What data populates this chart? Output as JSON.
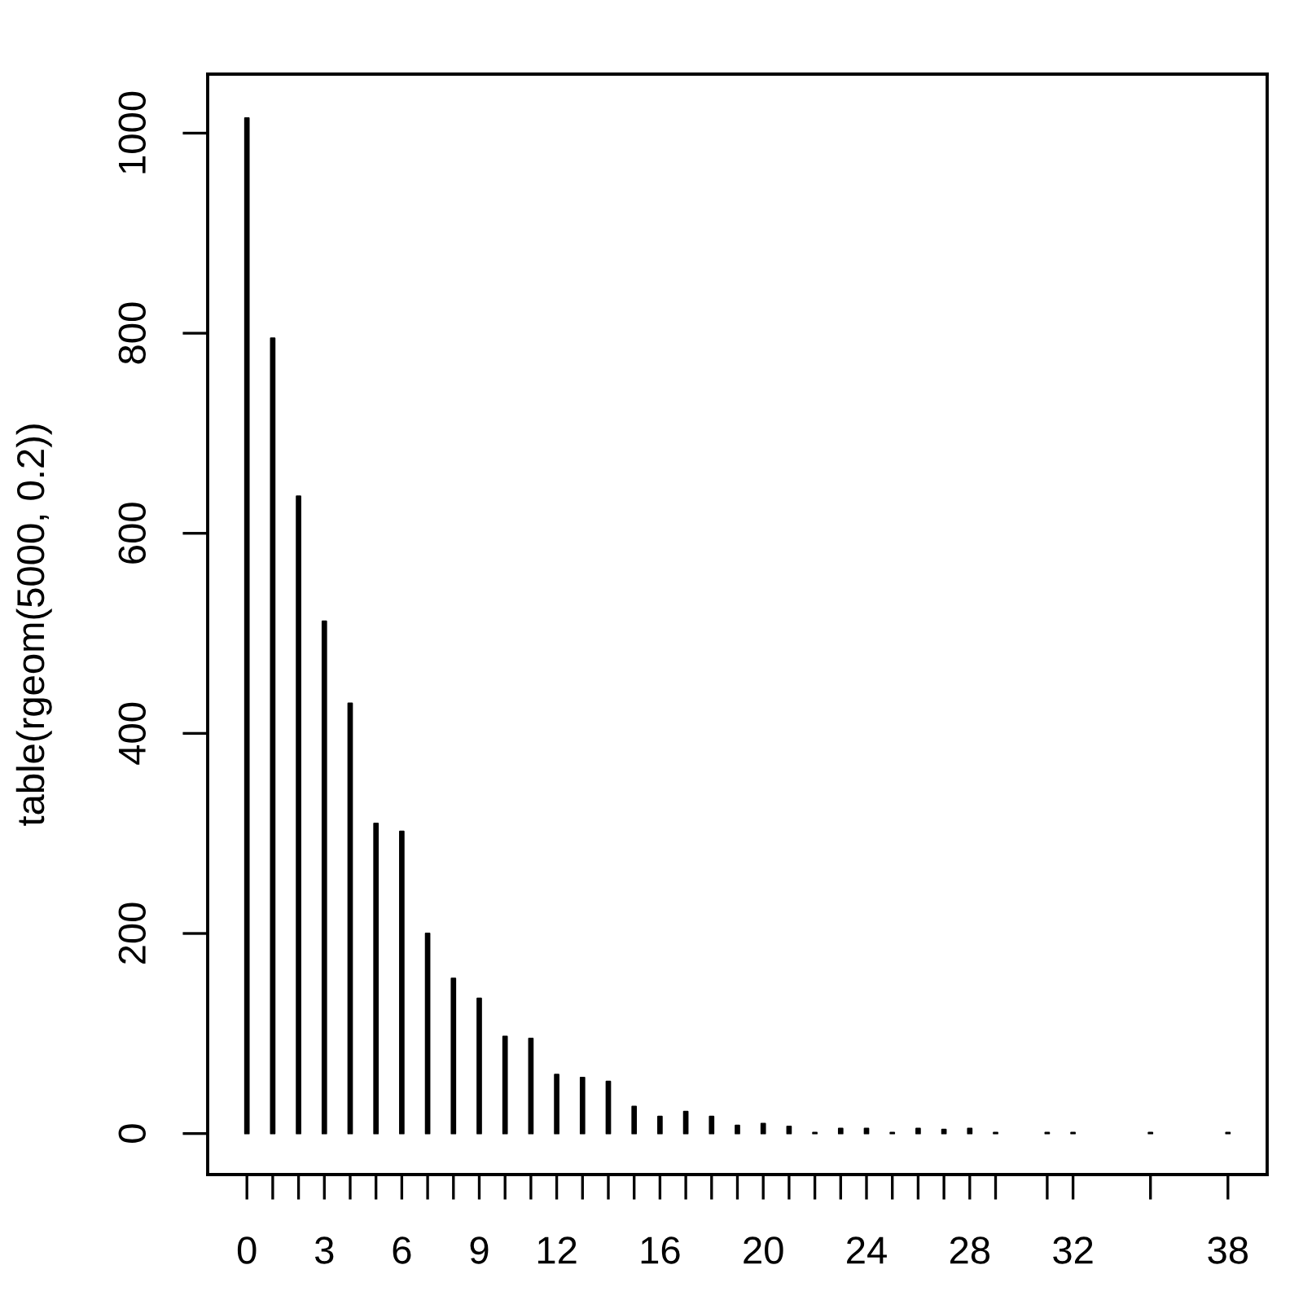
{
  "chart_data": {
    "type": "bar",
    "x": [
      0,
      1,
      2,
      3,
      4,
      5,
      6,
      7,
      8,
      9,
      10,
      11,
      12,
      13,
      14,
      15,
      16,
      17,
      18,
      19,
      20,
      21,
      22,
      23,
      24,
      25,
      26,
      27,
      28,
      29,
      31,
      32,
      35,
      38
    ],
    "values": [
      1015,
      795,
      637,
      512,
      430,
      310,
      302,
      200,
      155,
      135,
      97,
      95,
      59,
      56,
      52,
      27,
      17,
      22,
      17,
      8,
      10,
      7,
      1,
      5,
      5,
      1,
      5,
      4,
      5,
      1,
      1,
      1,
      1,
      1
    ],
    "color": "#000000",
    "ylabel": "table(rgeom(5000, 0.2))",
    "xlim": [
      -1.52,
      39.52
    ],
    "ylim": [
      -41,
      1059
    ],
    "xticks": [
      0,
      {
        "value": 1,
        "label": null
      },
      {
        "value": 2,
        "label": null
      },
      3,
      {
        "value": 4,
        "label": null
      },
      {
        "value": 5,
        "label": null
      },
      6,
      {
        "value": 7,
        "label": null
      },
      {
        "value": 8,
        "label": null
      },
      9,
      {
        "value": 10,
        "label": null
      },
      {
        "value": 11,
        "label": null
      },
      12,
      {
        "value": 13,
        "label": null
      },
      {
        "value": 14,
        "label": null
      },
      {
        "value": 15,
        "label": null
      },
      16,
      {
        "value": 17,
        "label": null
      },
      {
        "value": 18,
        "label": null
      },
      {
        "value": 19,
        "label": null
      },
      20,
      {
        "value": 21,
        "label": null
      },
      {
        "value": 22,
        "label": null
      },
      {
        "value": 23,
        "label": null
      },
      24,
      {
        "value": 25,
        "label": null
      },
      {
        "value": 26,
        "label": null
      },
      {
        "value": 27,
        "label": null
      },
      28,
      {
        "value": 29,
        "label": null
      },
      {
        "value": 31,
        "label": null
      },
      32,
      {
        "value": 35,
        "label": null
      },
      38
    ],
    "yticks": [
      0,
      200,
      400,
      600,
      800,
      1000
    ],
    "grid": false
  }
}
